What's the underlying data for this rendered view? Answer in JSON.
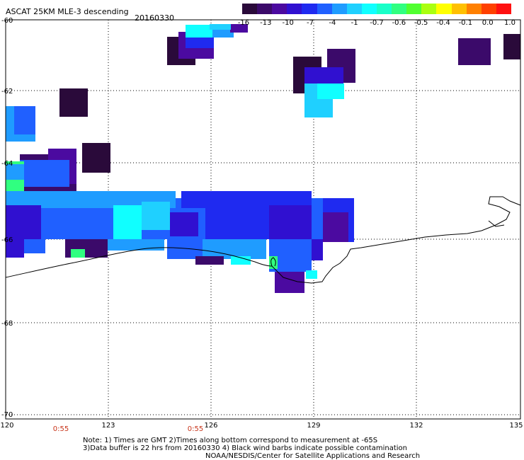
{
  "header": {
    "title": "ASCAT 25KM MLE-3 descending",
    "date": "20160330"
  },
  "colorbar": {
    "colors": [
      "#2a0a3a",
      "#3b0a6a",
      "#4b0aa0",
      "#3010d0",
      "#1f2af0",
      "#2060ff",
      "#1f9cff",
      "#1fd0ff",
      "#10ffff",
      "#19ffc8",
      "#30ff80",
      "#50ff30",
      "#aaff10",
      "#ffff00",
      "#ffc000",
      "#ff8000",
      "#ff4000",
      "#ff1010"
    ],
    "labels": [
      "-16",
      "-13",
      "-10",
      "-7",
      "-4",
      "-1",
      "-0.7",
      "-0.6",
      "-0.5",
      "-0.4",
      "-0.1",
      "0.0",
      "1.0"
    ]
  },
  "axes": {
    "y_labels": [
      "-60",
      "-62",
      "-64",
      "-66",
      "-68",
      "-70"
    ],
    "x_labels": [
      "120",
      "123",
      "126",
      "129",
      "132",
      "135"
    ],
    "time_marks": [
      "0:55",
      "0:55"
    ]
  },
  "notes": {
    "line1": "Note: 1) Times are GMT 2)Times along bottom correspond to measurement at -65S",
    "line2": "3)Data buffer is 22 hrs from 20160330 4) Black wind barbs indicate possible contamination",
    "line3": "NOAA/NESDIS/Center for Satellite Applications and Research"
  }
}
